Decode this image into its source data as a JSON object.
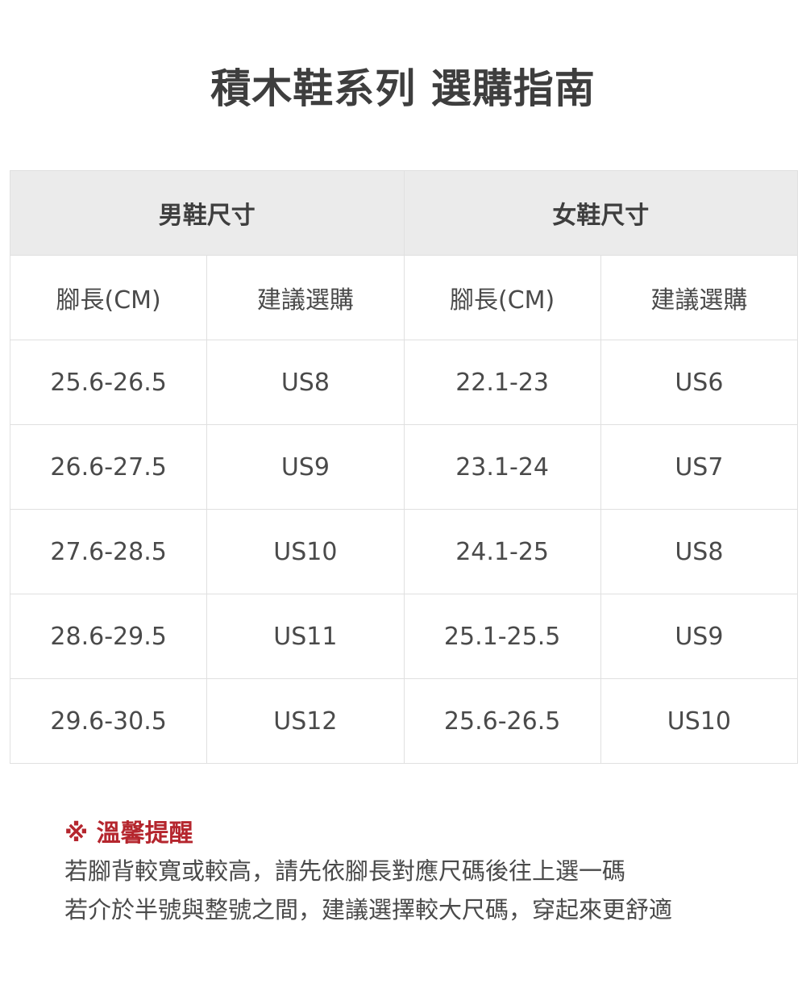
{
  "title": "積木鞋系列 選購指南",
  "table": {
    "groups": [
      "男鞋尺寸",
      "女鞋尺寸"
    ],
    "columns": [
      "腳長(CM)",
      "建議選購",
      "腳長(CM)",
      "建議選購"
    ],
    "rows": [
      [
        "25.6-26.5",
        "US8",
        "22.1-23",
        "US6"
      ],
      [
        "26.6-27.5",
        "US9",
        "23.1-24",
        "US7"
      ],
      [
        "27.6-28.5",
        "US10",
        "24.1-25",
        "US8"
      ],
      [
        "28.6-29.5",
        "US11",
        "25.1-25.5",
        "US9"
      ],
      [
        "29.6-30.5",
        "US12",
        "25.6-26.5",
        "US10"
      ]
    ]
  },
  "notes": {
    "title": "※ 溫馨提醒",
    "lines": [
      "若腳背較寬或較高，請先依腳長對應尺碼後往上選一碼",
      "若介於半號與整號之間，建議選擇較大尺碼，穿起來更舒適"
    ],
    "accent_color": "#b5262e"
  }
}
